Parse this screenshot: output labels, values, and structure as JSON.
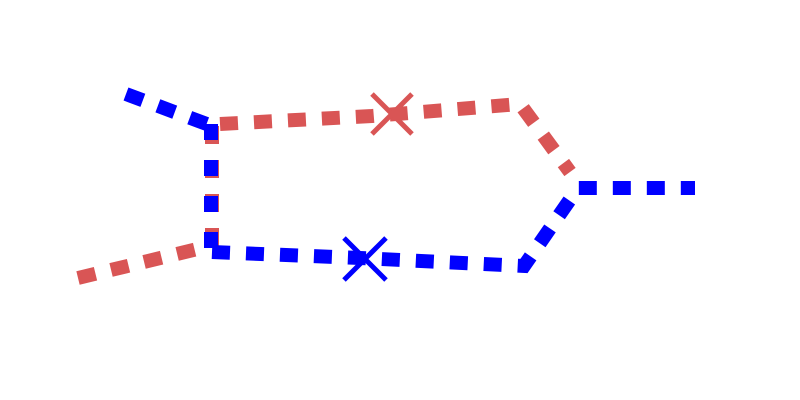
{
  "diagram": {
    "background": "#ffffff",
    "paths": [
      {
        "id": "red-path",
        "color": "#d95555",
        "markers": [
          "cross"
        ]
      },
      {
        "id": "blue-path",
        "color": "#0000ff",
        "markers": [
          "cross"
        ]
      }
    ]
  }
}
